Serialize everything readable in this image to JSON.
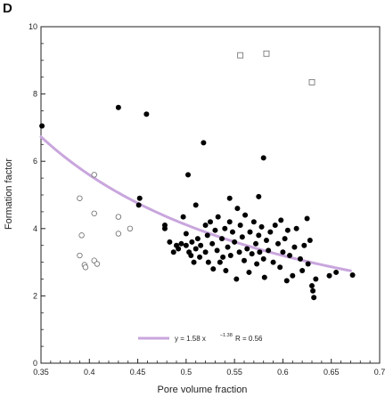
{
  "panel_label": "D",
  "chart_data": {
    "type": "scatter",
    "xlabel": "Pore volume fraction",
    "ylabel": "Formation factor",
    "xlim": [
      0.35,
      0.7
    ],
    "ylim": [
      0,
      10
    ],
    "x_ticks": [
      "0.35",
      "0.4",
      "0.45",
      "0.5",
      "0.55",
      "0.6",
      "0.65",
      "0.7"
    ],
    "y_ticks": [
      "0",
      "2",
      "4",
      "6",
      "8",
      "10"
    ],
    "grid": false,
    "legend": {
      "placement": "bottom-center",
      "equation_prefix": "y = 1.58 x",
      "equation_exponent": "–1.38",
      "r_label": "R = 0.56"
    },
    "colors": {
      "fit_line": "#c9a6dd",
      "filled_marker": "#000000",
      "open_marker": "#6a6a6a",
      "axis": "#222222"
    },
    "fit": {
      "coefficient": 1.58,
      "exponent": -1.38,
      "x_range": [
        0.35,
        0.67
      ]
    },
    "series": [
      {
        "marker": "filled-circle",
        "points": [
          [
            0.351,
            7.05
          ],
          [
            0.43,
            7.6
          ],
          [
            0.459,
            7.4
          ],
          [
            0.452,
            4.9
          ],
          [
            0.451,
            4.7
          ],
          [
            0.497,
            4.35
          ],
          [
            0.502,
            5.6
          ],
          [
            0.518,
            6.55
          ],
          [
            0.545,
            4.9
          ],
          [
            0.575,
            4.95
          ],
          [
            0.58,
            6.1
          ],
          [
            0.478,
            4.0
          ],
          [
            0.478,
            4.1
          ],
          [
            0.483,
            3.6
          ],
          [
            0.487,
            3.3
          ],
          [
            0.49,
            3.5
          ],
          [
            0.492,
            3.4
          ],
          [
            0.495,
            3.55
          ],
          [
            0.5,
            3.85
          ],
          [
            0.5,
            3.5
          ],
          [
            0.503,
            3.3
          ],
          [
            0.505,
            3.2
          ],
          [
            0.506,
            3.6
          ],
          [
            0.508,
            3.0
          ],
          [
            0.51,
            4.7
          ],
          [
            0.51,
            3.4
          ],
          [
            0.512,
            3.7
          ],
          [
            0.514,
            3.15
          ],
          [
            0.515,
            3.5
          ],
          [
            0.52,
            4.1
          ],
          [
            0.52,
            3.3
          ],
          [
            0.522,
            3.8
          ],
          [
            0.523,
            3.0
          ],
          [
            0.525,
            4.2
          ],
          [
            0.527,
            3.55
          ],
          [
            0.528,
            2.8
          ],
          [
            0.53,
            3.95
          ],
          [
            0.532,
            3.35
          ],
          [
            0.533,
            4.35
          ],
          [
            0.535,
            3.0
          ],
          [
            0.537,
            3.7
          ],
          [
            0.538,
            3.15
          ],
          [
            0.54,
            4.0
          ],
          [
            0.541,
            2.75
          ],
          [
            0.543,
            3.45
          ],
          [
            0.545,
            4.2
          ],
          [
            0.546,
            3.2
          ],
          [
            0.548,
            3.9
          ],
          [
            0.55,
            3.6
          ],
          [
            0.552,
            2.5
          ],
          [
            0.553,
            4.6
          ],
          [
            0.555,
            3.3
          ],
          [
            0.556,
            4.1
          ],
          [
            0.558,
            3.75
          ],
          [
            0.56,
            3.05
          ],
          [
            0.561,
            4.4
          ],
          [
            0.563,
            3.4
          ],
          [
            0.565,
            2.7
          ],
          [
            0.566,
            3.9
          ],
          [
            0.568,
            3.25
          ],
          [
            0.57,
            4.2
          ],
          [
            0.572,
            3.55
          ],
          [
            0.573,
            2.95
          ],
          [
            0.575,
            3.8
          ],
          [
            0.576,
            3.3
          ],
          [
            0.578,
            4.05
          ],
          [
            0.58,
            3.1
          ],
          [
            0.581,
            2.55
          ],
          [
            0.583,
            3.65
          ],
          [
            0.585,
            3.35
          ],
          [
            0.587,
            3.9
          ],
          [
            0.59,
            3.0
          ],
          [
            0.592,
            4.1
          ],
          [
            0.595,
            3.55
          ],
          [
            0.597,
            2.85
          ],
          [
            0.598,
            4.25
          ],
          [
            0.6,
            3.3
          ],
          [
            0.602,
            3.7
          ],
          [
            0.604,
            2.45
          ],
          [
            0.605,
            3.95
          ],
          [
            0.607,
            3.2
          ],
          [
            0.61,
            2.6
          ],
          [
            0.612,
            3.45
          ],
          [
            0.614,
            4.0
          ],
          [
            0.618,
            3.1
          ],
          [
            0.62,
            2.75
          ],
          [
            0.622,
            3.5
          ],
          [
            0.625,
            4.3
          ],
          [
            0.626,
            2.95
          ],
          [
            0.628,
            3.65
          ],
          [
            0.63,
            2.3
          ],
          [
            0.631,
            2.15
          ],
          [
            0.632,
            1.95
          ],
          [
            0.634,
            2.5
          ],
          [
            0.648,
            2.6
          ],
          [
            0.655,
            2.7
          ],
          [
            0.672,
            2.62
          ]
        ]
      },
      {
        "marker": "open-circle",
        "points": [
          [
            0.39,
            4.9
          ],
          [
            0.39,
            3.2
          ],
          [
            0.392,
            3.8
          ],
          [
            0.395,
            2.92
          ],
          [
            0.396,
            2.85
          ],
          [
            0.405,
            5.6
          ],
          [
            0.405,
            4.45
          ],
          [
            0.405,
            3.05
          ],
          [
            0.408,
            2.95
          ],
          [
            0.43,
            4.35
          ],
          [
            0.43,
            3.85
          ],
          [
            0.442,
            4.0
          ]
        ]
      },
      {
        "marker": "open-square",
        "points": [
          [
            0.556,
            9.15
          ],
          [
            0.583,
            9.2
          ],
          [
            0.63,
            8.35
          ]
        ]
      }
    ]
  }
}
